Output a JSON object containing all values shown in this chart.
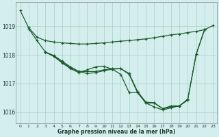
{
  "title": "Graphe pression niveau de la mer (hPa)",
  "bg_color": "#d4eeee",
  "grid_color": "#aacccc",
  "line_color": "#1a5c2a",
  "x_ticks": [
    0,
    1,
    2,
    3,
    4,
    5,
    6,
    7,
    8,
    9,
    10,
    11,
    12,
    13,
    14,
    15,
    16,
    17,
    18,
    19,
    20,
    21,
    22,
    23
  ],
  "ylim": [
    1015.6,
    1019.85
  ],
  "yticks": [
    1016,
    1017,
    1018,
    1019
  ],
  "lines": [
    {
      "x": [
        0,
        1,
        2,
        3,
        4,
        5,
        6,
        7,
        8,
        9,
        10,
        11,
        12,
        13,
        14,
        15,
        16,
        17,
        18,
        19,
        20,
        21,
        22
      ],
      "y": [
        1019.55,
        1018.95,
        1018.62,
        1018.5,
        1018.45,
        1018.42,
        1018.4,
        1018.38,
        1018.38,
        1018.4,
        1018.42,
        1018.45,
        1018.48,
        1018.5,
        1018.53,
        1018.56,
        1018.6,
        1018.65,
        1018.7,
        1018.73,
        1018.78,
        1018.82,
        1018.88
      ]
    },
    {
      "x": [
        1,
        2,
        3,
        4,
        5,
        6,
        7,
        8,
        9,
        10,
        11,
        12,
        13,
        14,
        15,
        16,
        17,
        18,
        19,
        20,
        21,
        22
      ],
      "y": [
        1018.92,
        1018.5,
        1018.1,
        1017.95,
        1017.75,
        1017.55,
        1017.42,
        1017.35,
        1017.38,
        1017.45,
        1017.5,
        1017.52,
        1017.35,
        1016.72,
        1016.35,
        1016.33,
        1016.12,
        1016.22,
        1016.22,
        1016.45,
        1018.02,
        1018.88
      ]
    },
    {
      "x": [
        3,
        4,
        5,
        6,
        7,
        8,
        9,
        10,
        11,
        12,
        13,
        14,
        15,
        16,
        17,
        18,
        19,
        20
      ],
      "y": [
        1018.1,
        1017.98,
        1017.78,
        1017.58,
        1017.42,
        1017.42,
        1017.42,
        1017.48,
        1017.52,
        1017.52,
        1017.32,
        1016.68,
        1016.32,
        1016.32,
        1016.12,
        1016.18,
        1016.22,
        1016.42
      ]
    },
    {
      "x": [
        3,
        4,
        5,
        6,
        7,
        8,
        9,
        10,
        11,
        12,
        13,
        14,
        15,
        16,
        17,
        18,
        19,
        20,
        21,
        22,
        23
      ],
      "y": [
        1018.1,
        1017.95,
        1017.72,
        1017.52,
        1017.38,
        1017.48,
        1017.58,
        1017.6,
        1017.5,
        1017.32,
        1016.68,
        1016.7,
        1016.32,
        1016.18,
        1016.08,
        1016.15,
        1016.22,
        1016.45,
        1018.02,
        1018.88,
        1019.02
      ]
    }
  ]
}
